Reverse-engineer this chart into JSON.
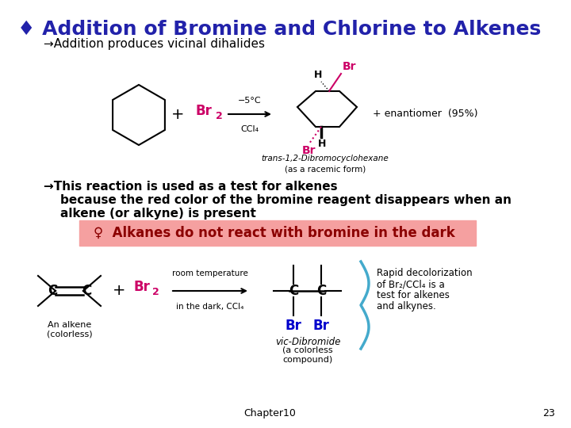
{
  "title": "♦ Addition of Bromine and Chlorine to Alkenes",
  "title_color": "#2222AA",
  "title_fontsize": 18,
  "bg_color": "#FFFFFF",
  "bullet1": "→Addition produces vicinal dihalides",
  "bullet1_fontsize": 11,
  "bullet1_color": "#000000",
  "bullet2_arrow": "→",
  "bullet2_text": "This reaction is used as a test for alkenes",
  "bullet2_line2": "    because the red color of the bromine reagent disappears when an",
  "bullet2_line3": "    alkene (or alkyne) is present",
  "bullet2_fontsize": 11,
  "bullet2_color": "#000000",
  "highlight_box_color": "#F5A0A0",
  "highlight_text": "♀  Alkanes do not react with bromine in the dark",
  "highlight_text_color": "#8B0000",
  "highlight_fontsize": 12,
  "chapter_text": "Chapter10",
  "page_num": "23",
  "footer_fontsize": 9,
  "br_color": "#CC0066",
  "br2_color": "#CC0066",
  "br_product_color": "#CC0066"
}
